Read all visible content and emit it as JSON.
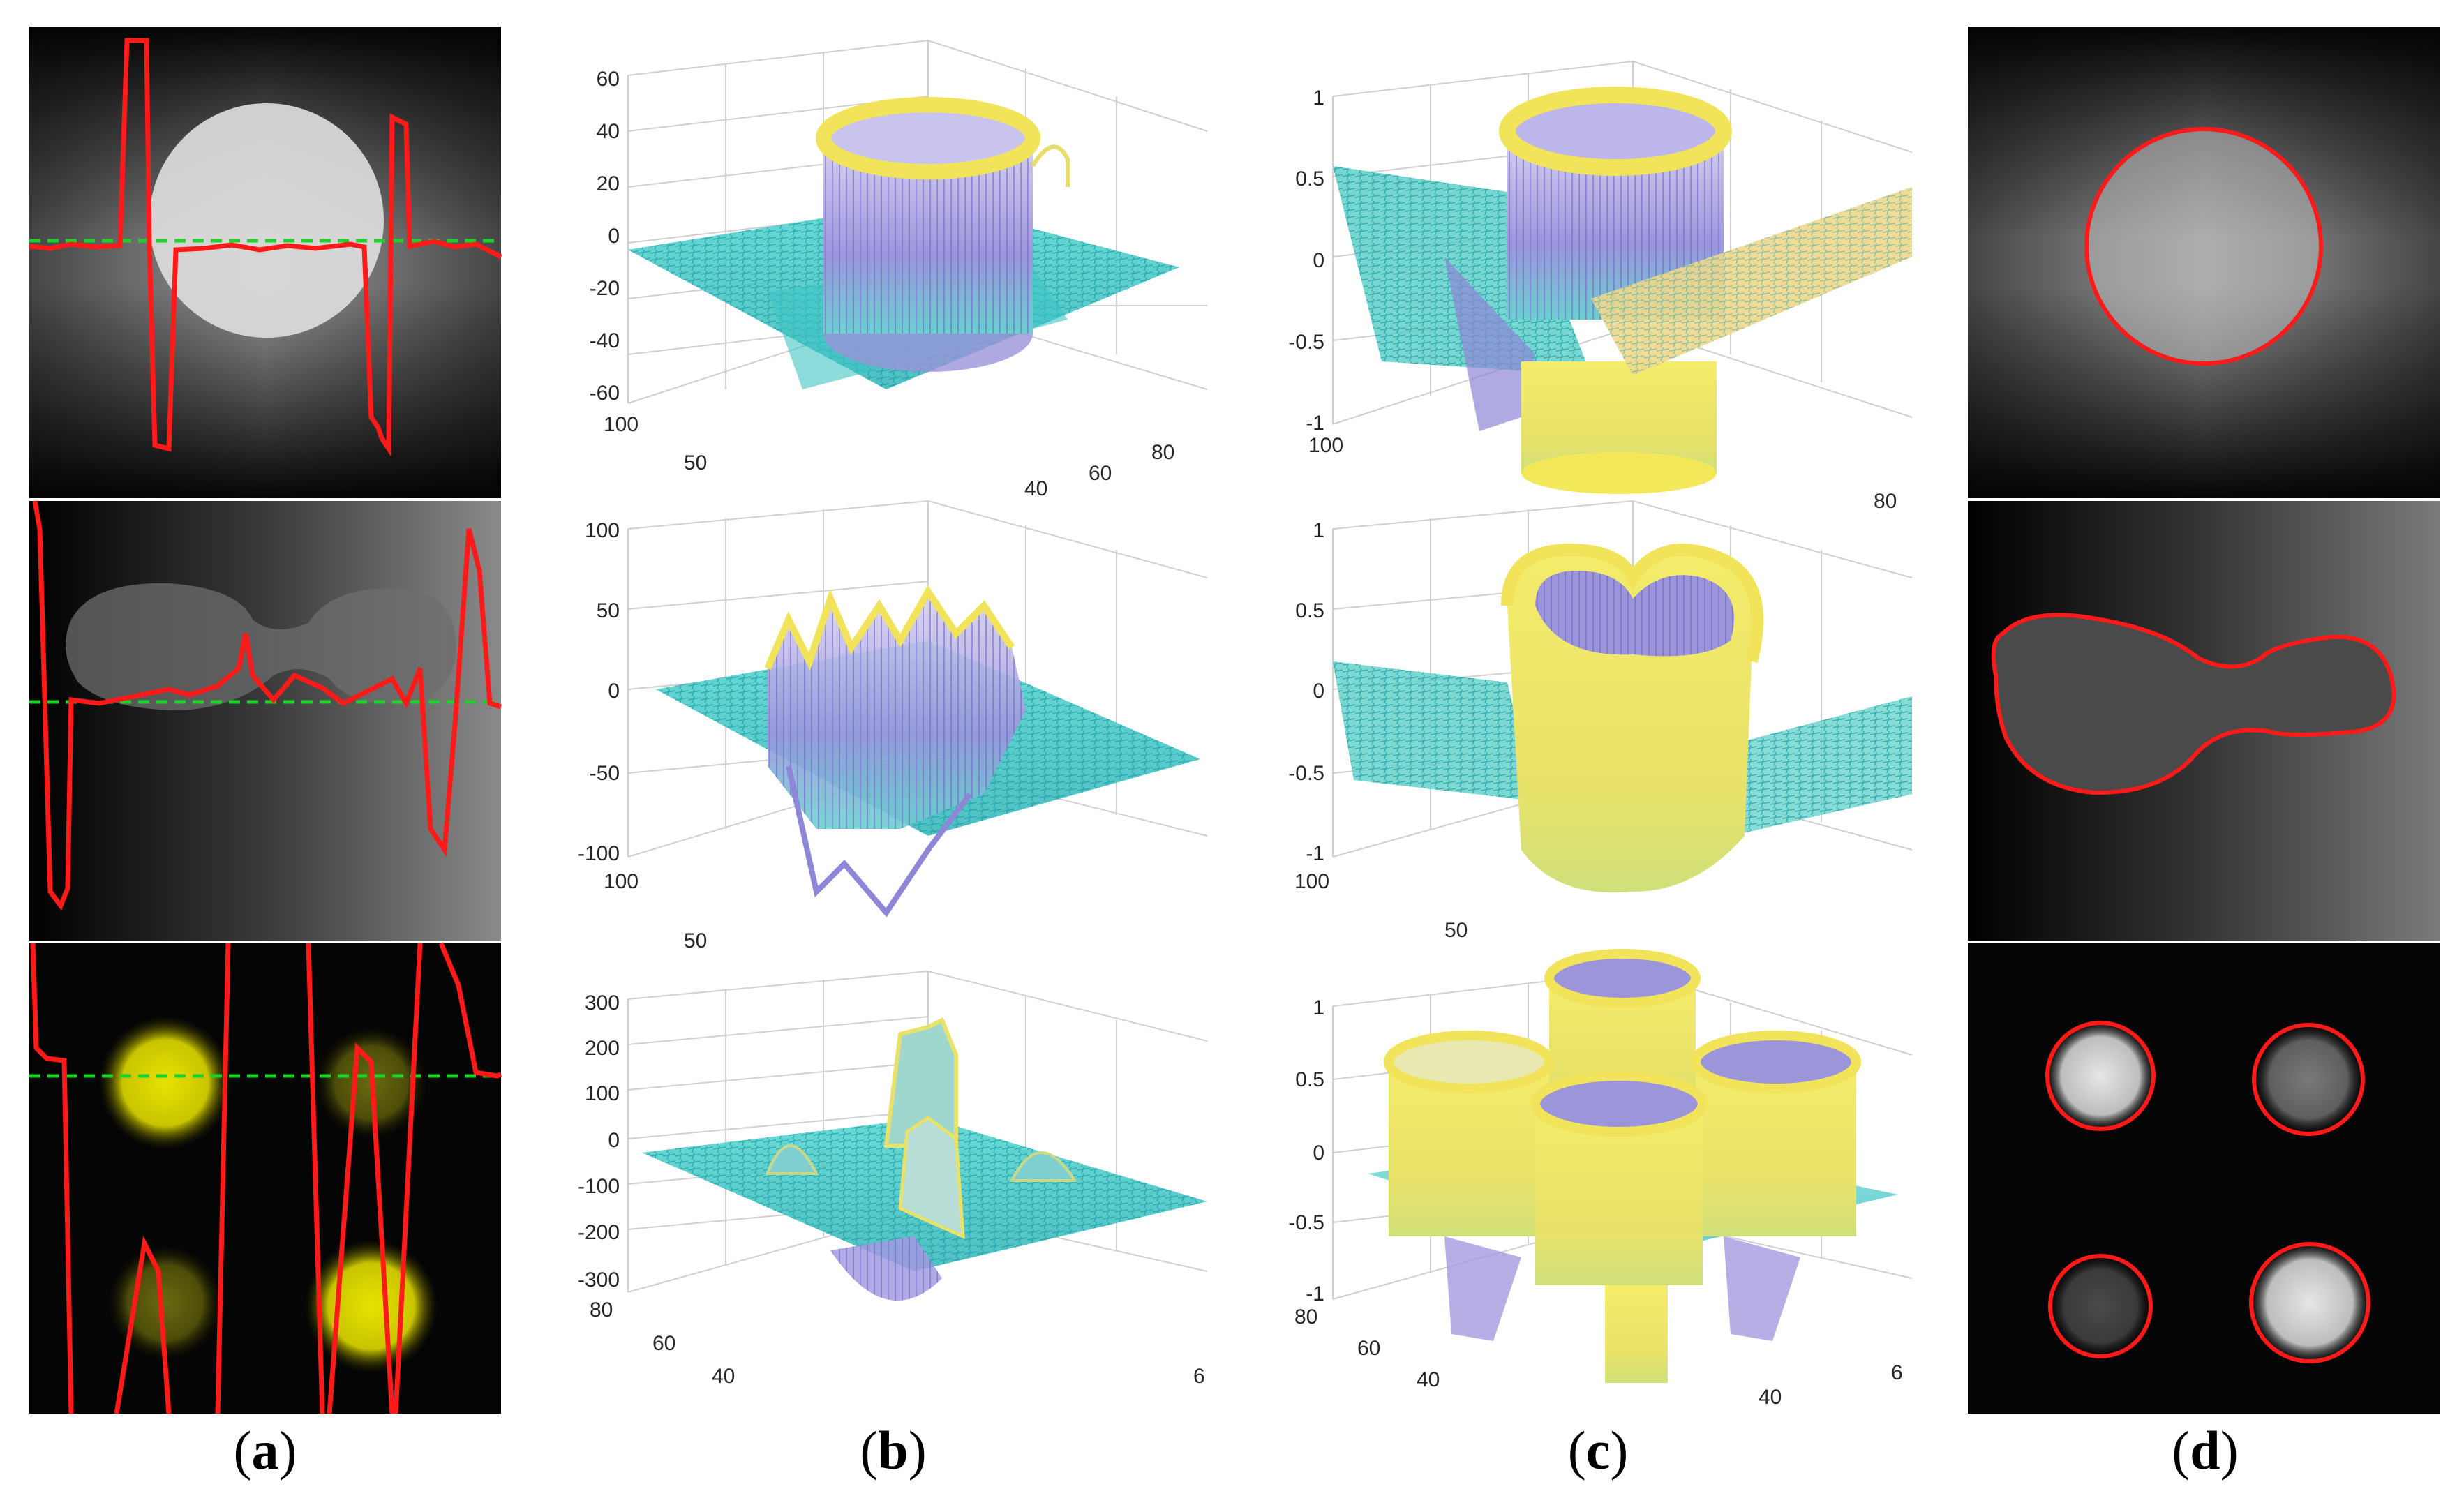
{
  "captions": {
    "a": {
      "open": "(",
      "letter": "a",
      "close": ")"
    },
    "b": {
      "open": "(",
      "letter": "b",
      "close": ")"
    },
    "c": {
      "open": "(",
      "letter": "c",
      "close": ")"
    },
    "d": {
      "open": "(",
      "letter": "d",
      "close": ")"
    }
  },
  "colors": {
    "contour": "#ff1a1a",
    "zero_line": "#1fd12a",
    "mesh_low": "#8e86d6",
    "mesh_mid": "#35c9c9",
    "mesh_high": "#f2e45a"
  },
  "plots_b": [
    {
      "z_ticks": [
        "60",
        "40",
        "20",
        "0",
        "-20",
        "-40",
        "-60"
      ],
      "y_ticks": [
        "100",
        "50"
      ],
      "x_ticks": [
        "40",
        "60",
        "80"
      ]
    },
    {
      "z_ticks": [
        "100",
        "50",
        "0",
        "-50",
        "-100"
      ],
      "y_ticks": [
        "100",
        "50"
      ],
      "x_ticks": []
    },
    {
      "z_ticks": [
        "300",
        "200",
        "100",
        "0",
        "-100",
        "-200",
        "-300"
      ],
      "y_ticks": [
        "80",
        "60",
        "40"
      ],
      "x_ticks": [
        "6"
      ]
    }
  ],
  "plots_c": [
    {
      "z_ticks": [
        "1",
        "0.5",
        "0",
        "-0.5",
        "-1"
      ],
      "y_ticks": [
        "100"
      ],
      "x_ticks": [
        "80"
      ]
    },
    {
      "z_ticks": [
        "1",
        "0.5",
        "0",
        "-0.5",
        "-1"
      ],
      "y_ticks": [
        "100",
        "50"
      ],
      "x_ticks": []
    },
    {
      "z_ticks": [
        "1",
        "0.5",
        "0",
        "-0.5",
        "-1"
      ],
      "y_ticks": [
        "80",
        "60",
        "40"
      ],
      "x_ticks": [
        "40",
        "6"
      ]
    }
  ]
}
